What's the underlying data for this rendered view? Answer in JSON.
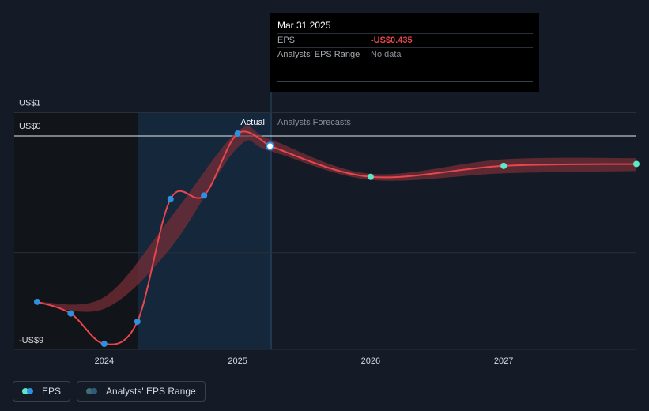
{
  "tooltip": {
    "date": "Mar 31 2025",
    "rows": [
      {
        "label": "EPS",
        "value": "-US$0.435"
      },
      {
        "label": "Analysts' EPS Range",
        "value": "No data"
      }
    ]
  },
  "legend": {
    "eps_label": "EPS",
    "range_label": "Analysts' EPS Range"
  },
  "colors": {
    "background": "#151b26",
    "line": "#e8464d",
    "band": "#7a2e37",
    "actual_marker": "#2f8fe0",
    "forecast_marker": "#5ee6c8",
    "actual_shade": "#16324a",
    "past_shade": "#111419"
  },
  "chart_data": {
    "type": "line",
    "currency": "US$",
    "y_tick_labels": [
      "US$1",
      "US$0",
      "-US$9"
    ],
    "y_ticks": [
      1,
      0,
      -9
    ],
    "ylim": [
      -9,
      1
    ],
    "x_tick_labels": [
      "2024",
      "2025",
      "2026",
      "2027"
    ],
    "xlim": [
      "2023-07-01",
      "2027-12-31"
    ],
    "divider_labels": {
      "left": "Actual",
      "right": "Analysts Forecasts"
    },
    "highlight_date": "2025-03-31",
    "actual_period_start": "2024-04-01",
    "series": [
      {
        "name": "EPS",
        "actual": [
          {
            "x": "2023-07-01",
            "y": -7.1
          },
          {
            "x": "2023-10-01",
            "y": -7.6
          },
          {
            "x": "2024-01-01",
            "y": -8.9
          },
          {
            "x": "2024-04-01",
            "y": -7.95
          },
          {
            "x": "2024-07-01",
            "y": -2.7
          },
          {
            "x": "2024-10-01",
            "y": -2.55
          },
          {
            "x": "2025-01-01",
            "y": 0.1
          },
          {
            "x": "2025-03-31",
            "y": -0.435
          }
        ],
        "forecast": [
          {
            "x": "2025-03-31",
            "y": -0.435
          },
          {
            "x": "2026-01-01",
            "y": -1.75
          },
          {
            "x": "2027-01-01",
            "y": -1.28
          },
          {
            "x": "2027-12-31",
            "y": -1.2
          }
        ]
      },
      {
        "name": "Analysts' EPS Range",
        "band": [
          {
            "x": "2023-07-01",
            "low": -7.15,
            "high": -7.1
          },
          {
            "x": "2024-01-01",
            "low": -7.4,
            "high": -6.9
          },
          {
            "x": "2024-07-01",
            "low": -4.8,
            "high": -3.5
          },
          {
            "x": "2025-01-01",
            "low": -0.5,
            "high": 0.2
          },
          {
            "x": "2025-03-31",
            "low": -0.65,
            "high": -0.15
          },
          {
            "x": "2026-01-01",
            "low": -1.88,
            "high": -1.62
          },
          {
            "x": "2027-01-01",
            "low": -1.6,
            "high": -1.0
          },
          {
            "x": "2027-12-31",
            "low": -1.5,
            "high": -0.95
          }
        ]
      }
    ]
  }
}
